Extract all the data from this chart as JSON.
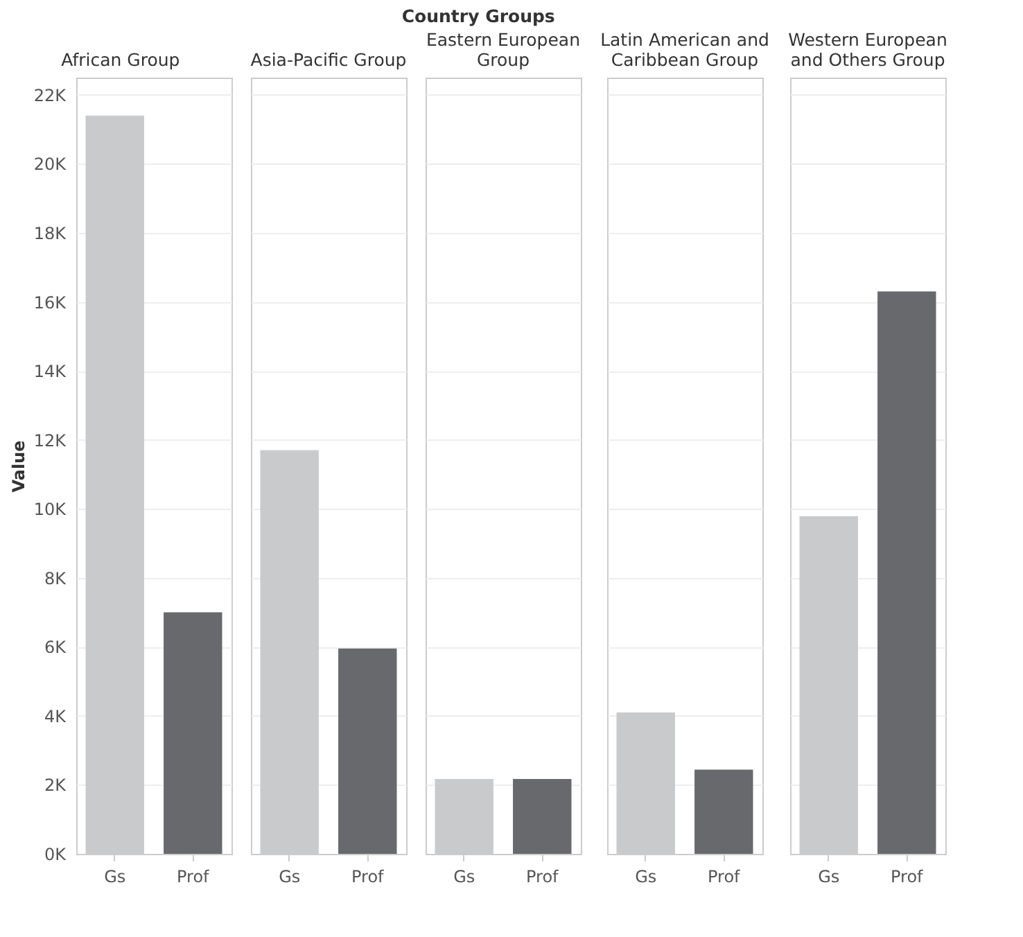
{
  "chart_data": [
    {
      "type": "bar",
      "title": "African Group",
      "ylabel": "Value",
      "annotations": [
        "Country Groups"
      ],
      "categories": [
        "Gs",
        "Prof"
      ],
      "values": [
        21400,
        7000
      ],
      "colors": [
        "#c9cacc",
        "#68696d"
      ],
      "ylim": [
        0,
        22500
      ],
      "yticks": [
        {
          "value": 0,
          "label": "0K"
        },
        {
          "value": 2000,
          "label": "2K"
        },
        {
          "value": 4000,
          "label": "4K"
        },
        {
          "value": 6000,
          "label": "6K"
        },
        {
          "value": 8000,
          "label": "8K"
        },
        {
          "value": 10000,
          "label": "10K"
        },
        {
          "value": 12000,
          "label": "12K"
        },
        {
          "value": 14000,
          "label": "14K"
        },
        {
          "value": 16000,
          "label": "16K"
        },
        {
          "value": 18000,
          "label": "18K"
        },
        {
          "value": 20000,
          "label": "20K"
        },
        {
          "value": 22000,
          "label": "22K"
        }
      ],
      "grid": "y"
    },
    {
      "type": "bar",
      "title": "Asia-Pacific Group",
      "categories": [
        "Gs",
        "Prof"
      ],
      "values": [
        11700,
        5950
      ],
      "colors": [
        "#c9cacc",
        "#68696d"
      ],
      "ylim": [
        0,
        22500
      ],
      "yticks": [
        0,
        2000,
        4000,
        6000,
        8000,
        10000,
        12000,
        14000,
        16000,
        18000,
        20000,
        22000
      ],
      "grid": "y",
      "tick_labels": "x"
    },
    {
      "type": "bar",
      "title": "Eastern European Group",
      "categories": [
        "Gs",
        "Prof"
      ],
      "values": [
        2170,
        2170
      ],
      "colors": [
        "#c9cacc",
        "#68696d"
      ],
      "ylim": [
        0,
        22500
      ],
      "yticks": [
        0,
        2000,
        4000,
        6000,
        8000,
        10000,
        12000,
        14000,
        16000,
        18000,
        20000,
        22000
      ],
      "grid": "y",
      "tick_labels": "x"
    },
    {
      "type": "bar",
      "title": "Latin American and Caribbean Group",
      "categories": [
        "Gs",
        "Prof"
      ],
      "values": [
        4100,
        2440
      ],
      "colors": [
        "#c9cacc",
        "#68696d"
      ],
      "ylim": [
        0,
        22500
      ],
      "yticks": [
        0,
        2000,
        4000,
        6000,
        8000,
        10000,
        12000,
        14000,
        16000,
        18000,
        20000,
        22000
      ],
      "grid": "y",
      "tick_labels": "x"
    },
    {
      "type": "bar",
      "title": "Western European and Others Group",
      "categories": [
        "Gs",
        "Prof"
      ],
      "values": [
        9790,
        16300
      ],
      "colors": [
        "#c9cacc",
        "#68696d"
      ],
      "ylim": [
        0,
        22500
      ],
      "yticks": [
        0,
        2000,
        4000,
        6000,
        8000,
        10000,
        12000,
        14000,
        16000,
        18000,
        20000,
        22000
      ],
      "grid": "y",
      "tick_labels": "x"
    }
  ]
}
